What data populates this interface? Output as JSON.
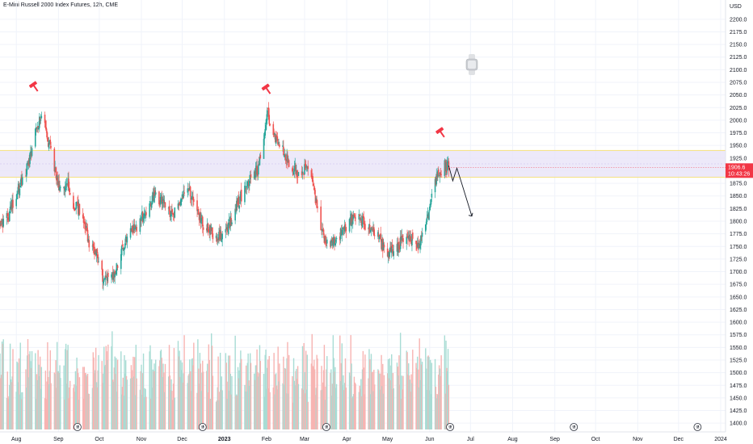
{
  "header": {
    "title": "E-Mini Russell 2000 Index Futures, 12h, CME"
  },
  "chart_data": {
    "type": "candlestick",
    "symbol": "E-Mini Russell 2000 Index Futures",
    "interval": "12h",
    "exchange": "CME",
    "currency": "USD",
    "y_axis": {
      "unit_label": "USD",
      "ylim": [
        1387.5,
        2212.5
      ],
      "ticks": [
        2200.0,
        2175.0,
        2150.0,
        2125.0,
        2100.0,
        2075.0,
        2050.0,
        2025.0,
        2000.0,
        1975.0,
        1950.0,
        1925.0,
        1900.0,
        1875.0,
        1850.0,
        1825.0,
        1800.0,
        1775.0,
        1750.0,
        1725.0,
        1700.0,
        1675.0,
        1650.0,
        1625.0,
        1600.0,
        1575.0,
        1550.0,
        1525.0,
        1500.0,
        1475.0,
        1450.0,
        1425.0,
        1400.0
      ],
      "tick_labels": [
        "2200.0",
        "2175.0",
        "2150.0",
        "2125.0",
        "2100.0",
        "2075.0",
        "2050.0",
        "2025.0",
        "2000.0",
        "1975.0",
        "1950.0",
        "1925.0",
        "1900.0",
        "1875.0",
        "1850.0",
        "1825.0",
        "1800.0",
        "1775.0",
        "1750.0",
        "1725.0",
        "1700.0",
        "1675.0",
        "1650.0",
        "1625.0",
        "1600.0",
        "1575.0",
        "1550.0",
        "1525.0",
        "1500.0",
        "1475.0",
        "1450.0",
        "1425.0",
        "1400.0"
      ]
    },
    "x_axis": {
      "labels": [
        "Aug",
        "Sep",
        "Oct",
        "Nov",
        "Dec",
        "2023",
        "Feb",
        "Mar",
        "Apr",
        "May",
        "Jun",
        "Jul",
        "Aug",
        "Sep",
        "Oct",
        "Nov",
        "Dec",
        "2024"
      ],
      "label_dates": [
        "2022-08-01",
        "2022-09-01",
        "2022-10-01",
        "2022-11-01",
        "2022-12-01",
        "2023-01-01",
        "2023-02-01",
        "2023-03-01",
        "2023-04-01",
        "2023-05-01",
        "2023-06-01",
        "2023-07-01",
        "2023-08-01",
        "2023-09-01",
        "2023-10-01",
        "2023-11-01",
        "2023-12-01",
        "2024-01-01"
      ],
      "bold_labels": [
        "2023"
      ]
    },
    "price_path": {
      "dates": [
        "2022-07-20",
        "2022-07-28",
        "2022-08-04",
        "2022-08-10",
        "2022-08-16",
        "2022-08-20",
        "2022-08-26",
        "2022-09-02",
        "2022-09-08",
        "2022-09-13",
        "2022-09-19",
        "2022-09-23",
        "2022-09-30",
        "2022-10-05",
        "2022-10-13",
        "2022-10-20",
        "2022-10-27",
        "2022-11-03",
        "2022-11-10",
        "2022-11-15",
        "2022-11-23",
        "2022-12-01",
        "2022-12-07",
        "2022-12-15",
        "2022-12-20",
        "2022-12-28",
        "2023-01-05",
        "2023-01-12",
        "2023-01-19",
        "2023-01-26",
        "2023-02-02",
        "2023-02-08",
        "2023-02-15",
        "2023-02-20",
        "2023-02-27",
        "2023-03-03",
        "2023-03-08",
        "2023-03-13",
        "2023-03-20",
        "2023-03-27",
        "2023-04-03",
        "2023-04-10",
        "2023-04-17",
        "2023-04-24",
        "2023-05-01",
        "2023-05-08",
        "2023-05-15",
        "2023-05-22",
        "2023-05-26",
        "2023-06-01",
        "2023-06-05",
        "2023-06-09",
        "2023-06-12",
        "2023-06-15"
      ],
      "values": [
        1790,
        1820,
        1870,
        1910,
        1980,
        2012,
        1950,
        1860,
        1880,
        1830,
        1820,
        1765,
        1730,
        1680,
        1700,
        1755,
        1785,
        1810,
        1850,
        1845,
        1810,
        1845,
        1860,
        1800,
        1785,
        1765,
        1790,
        1840,
        1880,
        1900,
        2015,
        1960,
        1935,
        1905,
        1895,
        1905,
        1875,
        1780,
        1755,
        1770,
        1800,
        1810,
        1790,
        1770,
        1735,
        1745,
        1780,
        1755,
        1760,
        1815,
        1870,
        1900,
        1910,
        1906.6
      ]
    },
    "current_price": {
      "value": 1906.6,
      "label": "1906.6",
      "countdown": "10:43:26",
      "color": "#f23645"
    },
    "resistance_zone": {
      "low": 1887,
      "high": 1940,
      "fill": "#e9e4f7",
      "border": "#f5e28a"
    },
    "projection": {
      "dates": [
        "2023-06-15",
        "2023-06-18",
        "2023-06-21",
        "2023-06-24",
        "2023-07-02"
      ],
      "values": [
        1910,
        1880,
        1905,
        1880,
        1810
      ]
    },
    "annotations": [
      {
        "type": "hammer-icon",
        "date": "2022-08-14",
        "value": 2068,
        "color": "#f23645"
      },
      {
        "type": "hammer-icon",
        "date": "2023-02-01",
        "value": 2063,
        "color": "#f23645"
      },
      {
        "type": "hammer-icon",
        "date": "2023-06-09",
        "value": 1977,
        "color": "#f23645"
      }
    ],
    "volume_ceiling": 1589,
    "dividend_markers": [
      "2022-09-15",
      "2022-12-16",
      "2023-03-17",
      "2023-06-16",
      "2023-09-15",
      "2023-12-15"
    ],
    "colors": {
      "up": "#26a69a",
      "down": "#ef5350",
      "volume_up": "#a8dcd4",
      "volume_down": "#f7b4b2",
      "grid": "#f0f3fa"
    }
  }
}
